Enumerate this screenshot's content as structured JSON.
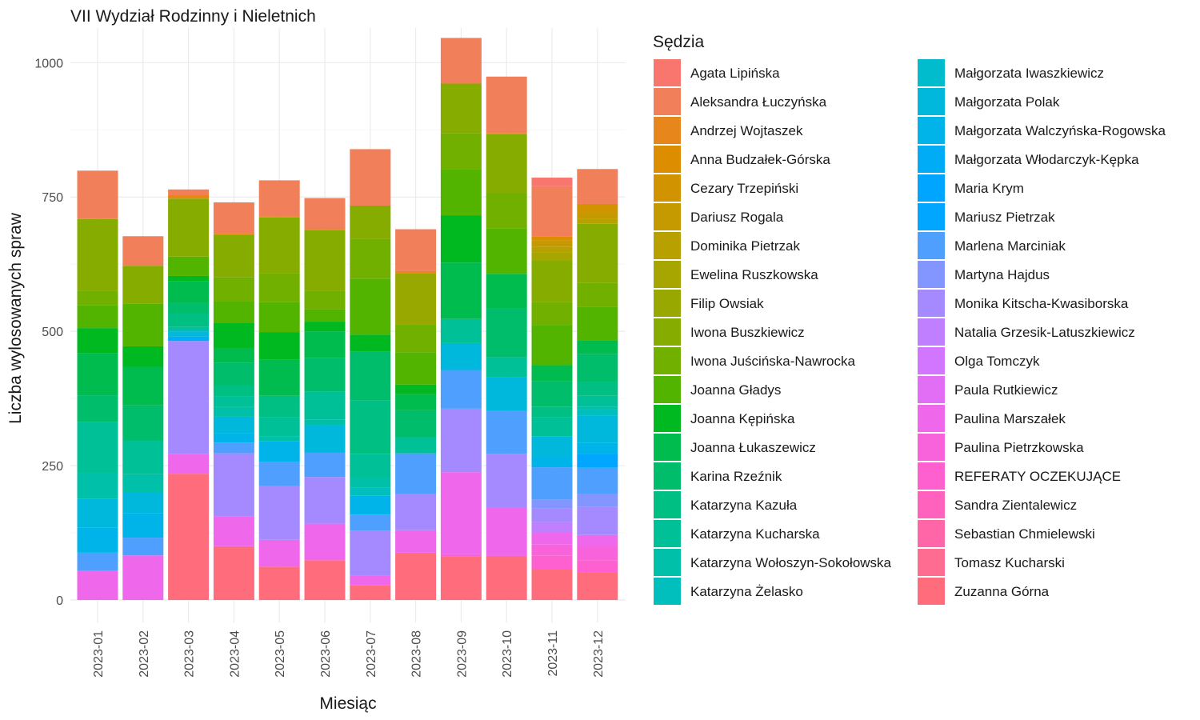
{
  "chart_data": {
    "type": "bar",
    "stacked": true,
    "title": "VII Wydział Rodzinny i Nieletnich",
    "xlabel": "Miesiąc",
    "ylabel": "Liczba wylosowanych spraw",
    "ylim": [
      0,
      1060
    ],
    "yticks": [
      0,
      250,
      500,
      750,
      1000
    ],
    "grid": true,
    "legend_title": "Sędzia",
    "legend_position": "right",
    "categories": [
      "2023-01",
      "2023-02",
      "2023-03",
      "2023-04",
      "2023-05",
      "2023-06",
      "2023-07",
      "2023-08",
      "2023-09",
      "2023-10",
      "2023-11",
      "2023-12"
    ],
    "series": [
      {
        "name": "Agata Lipińska",
        "color": "#F8766D",
        "values": [
          0,
          0,
          0,
          0,
          0,
          0,
          0,
          0,
          0,
          0,
          16,
          0
        ]
      },
      {
        "name": "Aleksandra Łuczyńska",
        "color": "#F07F5A",
        "values": [
          90,
          55,
          10,
          57,
          67,
          58,
          105,
          78,
          85,
          105,
          93,
          65
        ]
      },
      {
        "name": "Andrzej Wojtaszek",
        "color": "#E7861B",
        "values": [
          0,
          0,
          7,
          3,
          2,
          2,
          0,
          4,
          0,
          2,
          0,
          0
        ]
      },
      {
        "name": "Anna Budzałek-Górska",
        "color": "#DC8D00",
        "values": [
          0,
          0,
          0,
          0,
          0,
          0,
          0,
          0,
          0,
          0,
          8,
          0
        ]
      },
      {
        "name": "Cezary Trzepiński",
        "color": "#D19400",
        "values": [
          0,
          0,
          0,
          0,
          0,
          0,
          0,
          0,
          0,
          0,
          0,
          15
        ]
      },
      {
        "name": "Dariusz Rogala",
        "color": "#C49A00",
        "values": [
          0,
          0,
          0,
          0,
          0,
          0,
          0,
          0,
          0,
          0,
          12,
          12
        ]
      },
      {
        "name": "Dominika Pietrzak",
        "color": "#B7A000",
        "values": [
          0,
          0,
          0,
          0,
          0,
          0,
          0,
          0,
          0,
          0,
          10,
          10
        ]
      },
      {
        "name": "Ewelina Ruszkowska",
        "color": "#A7A500",
        "values": [
          0,
          0,
          0,
          0,
          0,
          0,
          0,
          0,
          0,
          0,
          15,
          0
        ]
      },
      {
        "name": "Filip Owsiak",
        "color": "#99A800",
        "values": [
          0,
          0,
          0,
          0,
          0,
          0,
          0,
          95,
          0,
          0,
          0,
          0
        ]
      },
      {
        "name": "Iwona Buszkiewicz",
        "color": "#86AC00",
        "values": [
          133,
          70,
          108,
          79,
          104,
          112,
          62,
          0,
          92,
          110,
          78,
          110
        ]
      },
      {
        "name": "Iwona Juścińska-Nawrocka",
        "color": "#72B000",
        "values": [
          28,
          0,
          0,
          45,
          54,
          35,
          74,
          52,
          68,
          65,
          42,
          45
        ]
      },
      {
        "name": "Joanna Gładys",
        "color": "#53B400",
        "values": [
          42,
          80,
          36,
          40,
          56,
          23,
          104,
          60,
          85,
          85,
          75,
          62
        ]
      },
      {
        "name": "Joanna Kępińska",
        "color": "#00B81F",
        "values": [
          47,
          38,
          10,
          47,
          50,
          18,
          32,
          18,
          88,
          0,
          0,
          0
        ]
      },
      {
        "name": "Joanna Łukaszewicz",
        "color": "#00BB4E",
        "values": [
          78,
          72,
          40,
          28,
          68,
          50,
          0,
          30,
          105,
          65,
          30,
          25
        ]
      },
      {
        "name": "Karina Rzeźnik",
        "color": "#00BD6B",
        "values": [
          50,
          65,
          20,
          42,
          0,
          62,
          90,
          50,
          0,
          90,
          47,
          53
        ]
      },
      {
        "name": "Katarzyna Kazuła",
        "color": "#00BF82",
        "values": [
          0,
          0,
          25,
          20,
          40,
          0,
          100,
          0,
          0,
          0,
          20,
          25
        ]
      },
      {
        "name": "Katarzyna Kucharska",
        "color": "#00C097",
        "values": [
          95,
          63,
          0,
          20,
          35,
          52,
          45,
          30,
          45,
          38,
          35,
          20
        ]
      },
      {
        "name": "Katarzyna Wołoszyn-Sokołowska",
        "color": "#00C0AA",
        "values": [
          48,
          33,
          8,
          18,
          10,
          10,
          18,
          0,
          0,
          0,
          0,
          5
        ]
      },
      {
        "name": "Katarzyna Żelasko",
        "color": "#00BFBC",
        "values": [
          0,
          0,
          0,
          0,
          0,
          0,
          15,
          0,
          0,
          0,
          0,
          12
        ]
      },
      {
        "name": "Małgorzata Iwaszkiewicz",
        "color": "#00BCCC",
        "values": [
          0,
          0,
          0,
          0,
          0,
          0,
          0,
          0,
          0,
          0,
          0,
          0
        ]
      },
      {
        "name": "Małgorzata Polak",
        "color": "#00B8DC",
        "values": [
          53,
          40,
          10,
          30,
          0,
          52,
          0,
          0,
          50,
          62,
          40,
          50
        ]
      },
      {
        "name": "Małgorzata Walczyńska-Rogowska",
        "color": "#00B3E9",
        "values": [
          47,
          45,
          0,
          18,
          38,
          0,
          35,
          0,
          0,
          0,
          18,
          22
        ]
      },
      {
        "name": "Małgorzata Włodarczyk-Kępka",
        "color": "#00ACF5",
        "values": [
          0,
          0,
          8,
          0,
          0,
          0,
          0,
          0,
          0,
          0,
          0,
          0
        ]
      },
      {
        "name": "Maria Krym",
        "color": "#00A5FF",
        "values": [
          0,
          0,
          0,
          0,
          0,
          0,
          0,
          0,
          0,
          0,
          0,
          0
        ]
      },
      {
        "name": "Mariusz Pietrzak",
        "color": "#00A6FF",
        "values": [
          0,
          0,
          0,
          0,
          0,
          0,
          0,
          0,
          0,
          0,
          0,
          25
        ]
      },
      {
        "name": "Marlena Marciniak",
        "color": "#4F9FFF",
        "values": [
          33,
          33,
          0,
          20,
          45,
          45,
          30,
          75,
          72,
          80,
          60,
          48
        ]
      },
      {
        "name": "Martyna Hajdus",
        "color": "#8396FF",
        "values": [
          0,
          0,
          0,
          0,
          0,
          0,
          0,
          0,
          0,
          0,
          17,
          25
        ]
      },
      {
        "name": "Monika Kitscha-Kwasiborska",
        "color": "#A58AFF",
        "values": [
          0,
          0,
          210,
          118,
          100,
          87,
          83,
          68,
          118,
          100,
          25,
          52
        ]
      },
      {
        "name": "Natalia Grzesik-Latuszkiewicz",
        "color": "#BF7FFF",
        "values": [
          0,
          0,
          0,
          0,
          0,
          0,
          0,
          0,
          0,
          0,
          20,
          0
        ]
      },
      {
        "name": "Olga Tomczyk",
        "color": "#D376FF",
        "values": [
          0,
          0,
          0,
          0,
          0,
          0,
          0,
          0,
          0,
          0,
          0,
          0
        ]
      },
      {
        "name": "Paula Rutkiewicz",
        "color": "#E36EF6",
        "values": [
          0,
          0,
          0,
          0,
          0,
          0,
          0,
          0,
          0,
          0,
          0,
          0
        ]
      },
      {
        "name": "Paulina Marszałek",
        "color": "#EF67EA",
        "values": [
          55,
          83,
          37,
          55,
          50,
          68,
          18,
          42,
          153,
          90,
          22,
          22
        ]
      },
      {
        "name": "Paulina Pietrzkowska",
        "color": "#F862DB",
        "values": [
          0,
          0,
          0,
          0,
          0,
          0,
          0,
          0,
          4,
          0,
          20,
          25
        ]
      },
      {
        "name": "REFERATY OCZEKUJĄCE",
        "color": "#FE61CF",
        "values": [
          0,
          0,
          0,
          0,
          0,
          0,
          0,
          0,
          0,
          0,
          25,
          22
        ]
      },
      {
        "name": "Sandra Zientalewicz",
        "color": "#FF62BC",
        "values": [
          0,
          0,
          0,
          0,
          0,
          0,
          0,
          0,
          0,
          0,
          0,
          0
        ]
      },
      {
        "name": "Sebastian Chmielewski",
        "color": "#FF66A8",
        "values": [
          0,
          0,
          0,
          0,
          0,
          0,
          0,
          0,
          0,
          0,
          0,
          0
        ]
      },
      {
        "name": "Tomasz Kucharski",
        "color": "#FF6C91",
        "values": [
          0,
          0,
          0,
          0,
          0,
          0,
          0,
          0,
          0,
          0,
          0,
          0
        ]
      },
      {
        "name": "Zuzanna Górna",
        "color": "#FF6C7B",
        "values": [
          0,
          0,
          235,
          100,
          62,
          74,
          28,
          88,
          81,
          82,
          58,
          52
        ]
      }
    ]
  }
}
